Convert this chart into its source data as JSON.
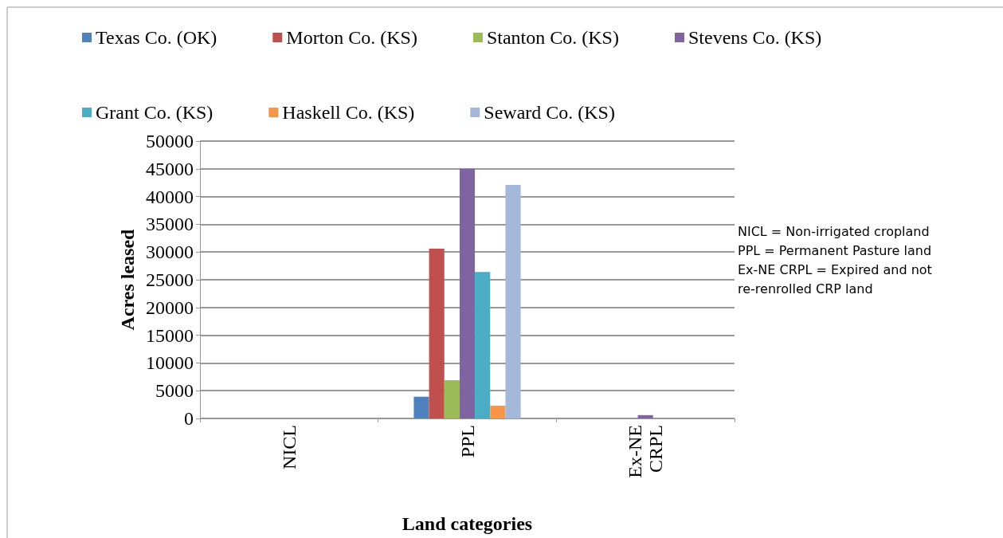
{
  "chart_data": {
    "type": "bar",
    "xlabel": "Land categories",
    "ylabel": "Acres leased",
    "categories": [
      "NICL",
      "PPL",
      "Ex-NE CRPL"
    ],
    "series": [
      {
        "name": "Texas Co. (OK)",
        "color": "#4f81bd",
        "values": [
          0,
          3900,
          0
        ]
      },
      {
        "name": "Morton Co. (KS)",
        "color": "#c0504d",
        "values": [
          0,
          30600,
          0
        ]
      },
      {
        "name": "Stanton Co. (KS)",
        "color": "#9bbb59",
        "values": [
          0,
          6900,
          0
        ]
      },
      {
        "name": "Stevens Co. (KS)",
        "color": "#8064a2",
        "values": [
          0,
          45000,
          600
        ]
      },
      {
        "name": "Grant Co. (KS)",
        "color": "#4bacc6",
        "values": [
          0,
          26400,
          0
        ]
      },
      {
        "name": "Haskell Co. (KS)",
        "color": "#f79646",
        "values": [
          0,
          2300,
          0
        ]
      },
      {
        "name": "Seward Co. (KS)",
        "color": "#a5b8da",
        "values": [
          0,
          42100,
          0
        ]
      }
    ],
    "ylim": [
      0,
      50000
    ],
    "yticks": [
      0,
      5000,
      10000,
      15000,
      20000,
      25000,
      30000,
      35000,
      40000,
      45000,
      50000
    ],
    "grid": "y",
    "legend": "top",
    "annotations": [
      "NICL = Non-irrigated cropland",
      "PPL = Permanent Pasture land",
      "Ex-NE CRPL = Expired and not re-renrolled CRP land"
    ]
  }
}
